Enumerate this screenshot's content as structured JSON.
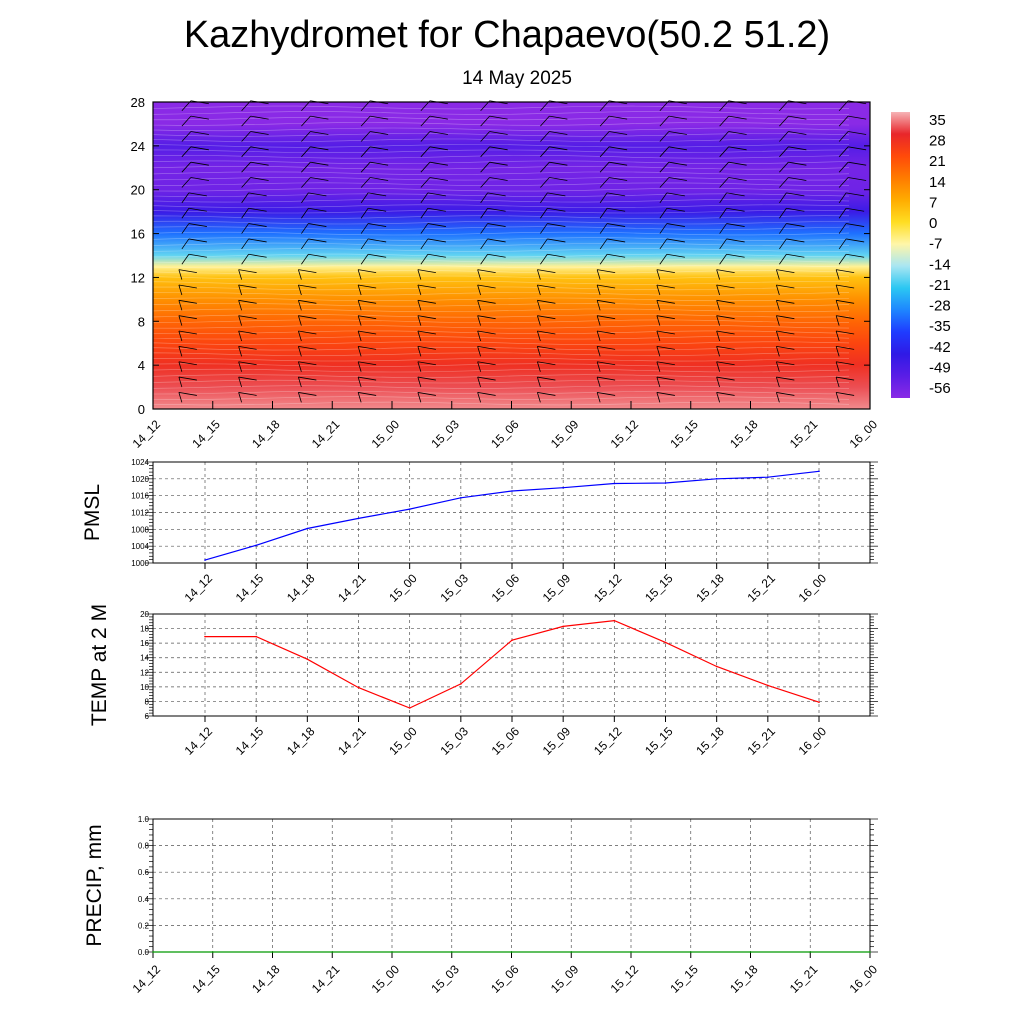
{
  "title": "Kazhydromet for Chapaevo(50.2 51.2)",
  "subtitle": "14 May 2025",
  "chart_data": [
    {
      "type": "heatmap",
      "title": "",
      "x_tick_labels": [
        "14_12",
        "14_15",
        "14_18",
        "14_21",
        "15_00",
        "15_03",
        "15_06",
        "15_09",
        "15_12",
        "15_15",
        "15_18",
        "15_21",
        "16_00"
      ],
      "y_ticks": [
        0,
        4,
        8,
        12,
        16,
        20,
        24,
        28
      ],
      "ylim": [
        0,
        28
      ],
      "colorbar": {
        "labels": [
          "35",
          "28",
          "21",
          "14",
          "7",
          "0",
          "-7",
          "-14",
          "-21",
          "-28",
          "-35",
          "-42",
          "-49",
          "-56"
        ],
        "colors": [
          "#f6b3b6",
          "#e8262b",
          "#ff4a0a",
          "#ff7b00",
          "#ffac00",
          "#ffdd22",
          "#fff6a8",
          "#a9e6f2",
          "#2bc7f2",
          "#1e86ff",
          "#1f3cff",
          "#2f1ae6",
          "#5a1de6",
          "#8a2ae6"
        ]
      },
      "temperature_profile": {
        "levels": [
          0,
          2,
          4,
          6,
          8,
          10,
          12,
          13,
          14,
          16,
          18,
          20,
          22,
          24,
          26,
          28
        ],
        "values": [
          33,
          30,
          26,
          22,
          17,
          11,
          4,
          -6,
          -18,
          -30,
          -44,
          -52,
          -53,
          -48,
          -60,
          -62
        ]
      },
      "wind_barbs": true
    },
    {
      "type": "line",
      "ylabel": "PMSL",
      "x_tick_labels": [
        "14_12",
        "14_15",
        "14_18",
        "14_21",
        "15_00",
        "15_03",
        "15_06",
        "15_09",
        "15_12",
        "15_15",
        "15_18",
        "15_21",
        "16_00"
      ],
      "y_ticks": [
        1000,
        1004,
        1008,
        1012,
        1016,
        1020,
        1024
      ],
      "ylim": [
        1000,
        1024
      ],
      "color": "#0000ff",
      "values": [
        1000.7,
        1004.2,
        1008.2,
        1010.6,
        1012.8,
        1015.5,
        1017.1,
        1017.9,
        1018.9,
        1019.0,
        1020.0,
        1020.4,
        1021.8
      ]
    },
    {
      "type": "line",
      "ylabel": "TEMP at 2 M",
      "x_tick_labels": [
        "14_12",
        "14_15",
        "14_18",
        "14_21",
        "15_00",
        "15_03",
        "15_06",
        "15_09",
        "15_12",
        "15_15",
        "15_18",
        "15_21",
        "16_00"
      ],
      "y_ticks": [
        6,
        8,
        10,
        12,
        14,
        16,
        18,
        20
      ],
      "ylim": [
        6,
        20
      ],
      "color": "#ff0000",
      "values": [
        16.9,
        16.9,
        13.8,
        9.9,
        7.1,
        10.4,
        16.4,
        18.3,
        19.1,
        16.1,
        12.8,
        10.2,
        7.9
      ]
    },
    {
      "type": "line",
      "ylabel": "PRECIP, mm",
      "x_tick_labels": [
        "14_12",
        "14_15",
        "14_18",
        "14_21",
        "15_00",
        "15_03",
        "15_06",
        "15_09",
        "15_12",
        "15_15",
        "15_18",
        "15_21",
        "16_00"
      ],
      "y_ticks": [
        "0.0",
        "0.2",
        "0.4",
        "0.6",
        "0.8",
        "1.0"
      ],
      "ylim": [
        0,
        1
      ],
      "color": "#009900",
      "values": [
        0,
        0,
        0,
        0,
        0,
        0,
        0,
        0,
        0,
        0,
        0,
        0,
        0
      ]
    }
  ]
}
